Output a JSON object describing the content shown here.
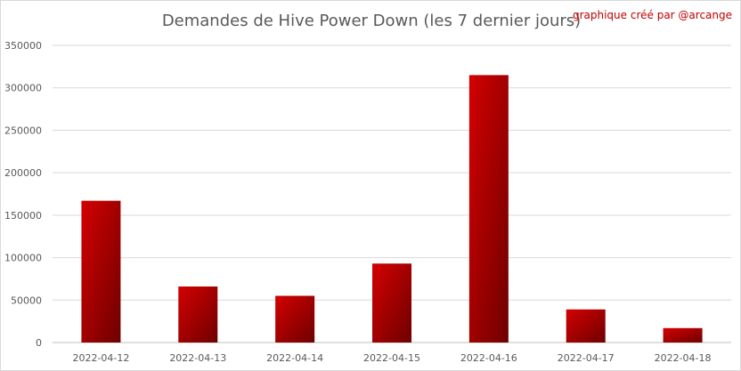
{
  "chart_data": {
    "type": "bar",
    "title": "Demandes de Hive Power Down (les 7 dernier jours)",
    "credit": "graphique créé par @arcange",
    "xlabel": "",
    "ylabel": "",
    "categories": [
      "2022-04-12",
      "2022-04-13",
      "2022-04-14",
      "2022-04-15",
      "2022-04-16",
      "2022-04-17",
      "2022-04-18"
    ],
    "series": [
      {
        "values": [
          167000,
          66000,
          55000,
          93000,
          315000,
          39000,
          17000
        ]
      }
    ],
    "ylim": [
      0,
      350000
    ],
    "yticks": [
      0,
      50000,
      100000,
      150000,
      200000,
      250000,
      300000,
      350000
    ],
    "ytick_labels": [
      "0",
      "50000",
      "100000",
      "150000",
      "200000",
      "250000",
      "300000",
      "350000"
    ],
    "grid": true,
    "legend": "none",
    "colors": {
      "bar_light": "#d40000",
      "bar_dark": "#6e0000",
      "title": "#595959",
      "credit": "#c00000"
    }
  }
}
